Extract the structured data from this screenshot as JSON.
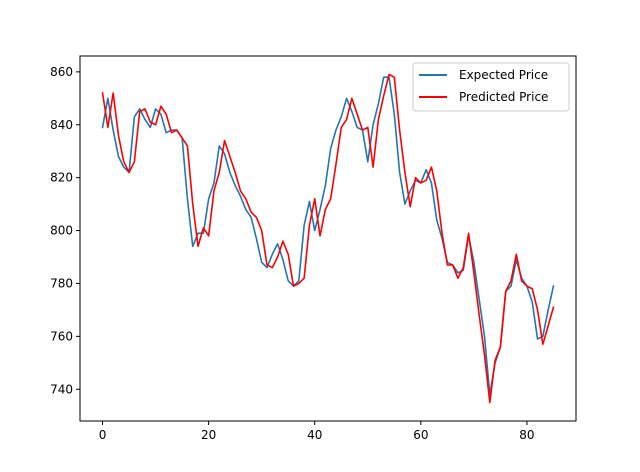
{
  "chart_data": {
    "type": "line",
    "title": "",
    "xlabel": "",
    "ylabel": "",
    "xlim": [
      -4.25,
      89.25
    ],
    "ylim": [
      728,
      866
    ],
    "xticks": [
      0,
      20,
      40,
      60,
      80
    ],
    "yticks": [
      740,
      760,
      780,
      800,
      820,
      840,
      860
    ],
    "grid": false,
    "legend_position": "top-right",
    "series": [
      {
        "name": "Expected Price",
        "color": "#1f77b4",
        "x": [
          0,
          1,
          2,
          3,
          4,
          5,
          6,
          7,
          8,
          9,
          10,
          11,
          12,
          13,
          14,
          15,
          16,
          17,
          18,
          19,
          20,
          21,
          22,
          23,
          24,
          25,
          26,
          27,
          28,
          29,
          30,
          31,
          32,
          33,
          34,
          35,
          36,
          37,
          38,
          39,
          40,
          41,
          42,
          43,
          44,
          45,
          46,
          47,
          48,
          49,
          50,
          51,
          52,
          53,
          54,
          55,
          56,
          57,
          58,
          59,
          60,
          61,
          62,
          63,
          64,
          65,
          66,
          67,
          68,
          69,
          70,
          71,
          72,
          73,
          74,
          75,
          76,
          77,
          78,
          79,
          80,
          81,
          82,
          83,
          84,
          85
        ],
        "y": [
          839,
          850,
          838,
          828,
          824,
          822,
          843,
          846,
          842,
          839,
          846,
          844,
          837,
          838,
          838,
          835,
          812,
          794,
          799,
          799,
          812,
          818,
          832,
          829,
          822,
          817,
          813,
          808,
          805,
          797,
          788,
          786,
          791,
          795,
          789,
          781,
          779,
          781,
          802,
          811,
          800,
          808,
          817,
          831,
          838,
          843,
          850,
          845,
          839,
          838,
          826,
          840,
          848,
          858,
          858,
          844,
          822,
          810,
          815,
          819,
          818,
          823,
          818,
          804,
          797,
          788,
          787,
          784,
          785,
          798,
          788,
          774,
          760,
          738,
          750,
          756,
          777,
          779,
          789,
          782,
          779,
          773,
          759,
          760,
          770,
          779
        ]
      },
      {
        "name": "Predicted Price",
        "color": "#ff0000",
        "x": [
          0,
          1,
          2,
          3,
          4,
          5,
          6,
          7,
          8,
          9,
          10,
          11,
          12,
          13,
          14,
          15,
          16,
          17,
          18,
          19,
          20,
          21,
          22,
          23,
          24,
          25,
          26,
          27,
          28,
          29,
          30,
          31,
          32,
          33,
          34,
          35,
          36,
          37,
          38,
          39,
          40,
          41,
          42,
          43,
          44,
          45,
          46,
          47,
          48,
          49,
          50,
          51,
          52,
          53,
          54,
          55,
          56,
          57,
          58,
          59,
          60,
          61,
          62,
          63,
          64,
          65,
          66,
          67,
          68,
          69,
          70,
          71,
          72,
          73,
          74,
          75,
          76,
          77,
          78,
          79,
          80,
          81,
          82,
          83,
          84,
          85
        ],
        "y": [
          852,
          839,
          852,
          836,
          826,
          822,
          826,
          845,
          846,
          841,
          840,
          847,
          844,
          837,
          838,
          835,
          832,
          810,
          794,
          801,
          798,
          815,
          822,
          834,
          828,
          822,
          815,
          812,
          807,
          805,
          800,
          787,
          786,
          790,
          796,
          791,
          779,
          780,
          782,
          802,
          812,
          798,
          808,
          812,
          825,
          839,
          842,
          850,
          844,
          838,
          839,
          824,
          842,
          851,
          859,
          858,
          838,
          822,
          809,
          820,
          818,
          819,
          824,
          815,
          799,
          787,
          787,
          782,
          786,
          799,
          784,
          768,
          753,
          735,
          751,
          756,
          777,
          781,
          791,
          781,
          779,
          778,
          770,
          757,
          764,
          771
        ]
      }
    ]
  }
}
